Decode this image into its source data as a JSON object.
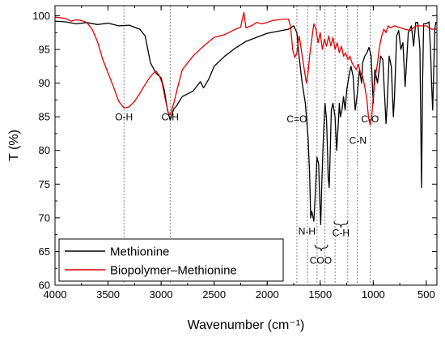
{
  "chart_data": {
    "type": "line",
    "title": "",
    "xlabel": "Wavenumber (cm⁻¹)",
    "ylabel": "T (%)",
    "xlim": [
      4000,
      400
    ],
    "ylim": [
      60,
      101.5
    ],
    "x_reversed": true,
    "x_ticks": [
      4000,
      3500,
      3000,
      2500,
      2000,
      1500,
      1000,
      500
    ],
    "y_ticks": [
      60,
      65,
      70,
      75,
      80,
      85,
      90,
      95,
      100
    ],
    "grid": false,
    "legend_position": "bottom-left",
    "series": [
      {
        "name": "Methionine",
        "color": "#000000",
        "points": [
          [
            4000,
            99.2
          ],
          [
            3900,
            99.1
          ],
          [
            3800,
            98.8
          ],
          [
            3700,
            99.0
          ],
          [
            3600,
            98.7
          ],
          [
            3500,
            98.9
          ],
          [
            3400,
            98.5
          ],
          [
            3300,
            98.6
          ],
          [
            3200,
            98.0
          ],
          [
            3150,
            97.0
          ],
          [
            3100,
            93.0
          ],
          [
            3050,
            91.5
          ],
          [
            3000,
            90.8
          ],
          [
            2970,
            89.0
          ],
          [
            2940,
            86.0
          ],
          [
            2915,
            84.5
          ],
          [
            2880,
            86.2
          ],
          [
            2860,
            86.5
          ],
          [
            2800,
            88.0
          ],
          [
            2700,
            88.8
          ],
          [
            2630,
            90.2
          ],
          [
            2600,
            89.3
          ],
          [
            2550,
            90.6
          ],
          [
            2500,
            92.5
          ],
          [
            2400,
            94.0
          ],
          [
            2300,
            95.2
          ],
          [
            2200,
            96.2
          ],
          [
            2100,
            96.8
          ],
          [
            2000,
            97.4
          ],
          [
            1900,
            97.7
          ],
          [
            1800,
            98.0
          ],
          [
            1750,
            98.5
          ],
          [
            1720,
            97.5
          ],
          [
            1700,
            94.0
          ],
          [
            1670,
            90.0
          ],
          [
            1640,
            87.0
          ],
          [
            1615,
            82.0
          ],
          [
            1600,
            76.5
          ],
          [
            1590,
            70.0
          ],
          [
            1580,
            71.0
          ],
          [
            1560,
            69.5
          ],
          [
            1545,
            74.0
          ],
          [
            1530,
            79.0
          ],
          [
            1515,
            78.0
          ],
          [
            1505,
            73.0
          ],
          [
            1495,
            69.0
          ],
          [
            1485,
            75.0
          ],
          [
            1470,
            82.0
          ],
          [
            1455,
            87.0
          ],
          [
            1440,
            84.5
          ],
          [
            1430,
            79.0
          ],
          [
            1425,
            76.0
          ],
          [
            1415,
            74.5
          ],
          [
            1405,
            80.0
          ],
          [
            1395,
            86.0
          ],
          [
            1380,
            87.0
          ],
          [
            1360,
            85.0
          ],
          [
            1345,
            80.0
          ],
          [
            1330,
            84.0
          ],
          [
            1320,
            87.0
          ],
          [
            1310,
            85.0
          ],
          [
            1295,
            86.0
          ],
          [
            1280,
            88.0
          ],
          [
            1265,
            86.0
          ],
          [
            1250,
            89.0
          ],
          [
            1230,
            91.0
          ],
          [
            1210,
            92.5
          ],
          [
            1190,
            91.0
          ],
          [
            1170,
            86.0
          ],
          [
            1150,
            88.5
          ],
          [
            1130,
            92.0
          ],
          [
            1110,
            90.0
          ],
          [
            1100,
            93.0
          ],
          [
            1080,
            94.0
          ],
          [
            1060,
            94.5
          ],
          [
            1040,
            95.3
          ],
          [
            1020,
            94.0
          ],
          [
            1000,
            87.0
          ],
          [
            985,
            92.0
          ],
          [
            960,
            90.0
          ],
          [
            930,
            94.0
          ],
          [
            910,
            93.5
          ],
          [
            880,
            84.0
          ],
          [
            870,
            86.5
          ],
          [
            850,
            94.0
          ],
          [
            830,
            92.5
          ],
          [
            810,
            85.0
          ],
          [
            800,
            88.0
          ],
          [
            780,
            97.0
          ],
          [
            760,
            97.8
          ],
          [
            740,
            95.0
          ],
          [
            720,
            96.0
          ],
          [
            700,
            89.5
          ],
          [
            690,
            92.0
          ],
          [
            670,
            97.5
          ],
          [
            640,
            98.5
          ],
          [
            620,
            95.5
          ],
          [
            600,
            99.0
          ],
          [
            580,
            99.0
          ],
          [
            560,
            95.0
          ],
          [
            545,
            74.5
          ],
          [
            535,
            90.0
          ],
          [
            525,
            98.8
          ],
          [
            500,
            98.8
          ],
          [
            475,
            99.1
          ],
          [
            460,
            95.0
          ],
          [
            450,
            90.0
          ],
          [
            440,
            86.0
          ],
          [
            420,
            98.0
          ],
          [
            410,
            99.0
          ],
          [
            400,
            99.0
          ]
        ]
      },
      {
        "name": "Biopolymer–Methionine",
        "color": "#e00000",
        "points": [
          [
            4000,
            99.8
          ],
          [
            3900,
            99.6
          ],
          [
            3850,
            99.2
          ],
          [
            3800,
            99.4
          ],
          [
            3750,
            99.3
          ],
          [
            3700,
            99.0
          ],
          [
            3650,
            98.0
          ],
          [
            3600,
            96.2
          ],
          [
            3550,
            93.5
          ],
          [
            3500,
            91.5
          ],
          [
            3450,
            89.5
          ],
          [
            3400,
            87.3
          ],
          [
            3350,
            86.3
          ],
          [
            3300,
            86.5
          ],
          [
            3250,
            87.3
          ],
          [
            3200,
            88.5
          ],
          [
            3150,
            89.8
          ],
          [
            3100,
            91.0
          ],
          [
            3050,
            91.8
          ],
          [
            3020,
            91.2
          ],
          [
            2990,
            90.0
          ],
          [
            2960,
            87.5
          ],
          [
            2930,
            85.5
          ],
          [
            2915,
            85.3
          ],
          [
            2880,
            87.0
          ],
          [
            2850,
            89.0
          ],
          [
            2800,
            92.0
          ],
          [
            2700,
            94.0
          ],
          [
            2600,
            95.5
          ],
          [
            2500,
            96.8
          ],
          [
            2400,
            97.2
          ],
          [
            2300,
            98.0
          ],
          [
            2250,
            98.3
          ],
          [
            2220,
            100.5
          ],
          [
            2200,
            98.2
          ],
          [
            2150,
            98.5
          ],
          [
            2100,
            99.0
          ],
          [
            2050,
            98.8
          ],
          [
            2000,
            99.0
          ],
          [
            1950,
            99.3
          ],
          [
            1900,
            99.4
          ],
          [
            1850,
            99.5
          ],
          [
            1800,
            99.5
          ],
          [
            1780,
            98.5
          ],
          [
            1760,
            95.0
          ],
          [
            1740,
            93.8
          ],
          [
            1720,
            94.5
          ],
          [
            1700,
            97.0
          ],
          [
            1690,
            96.2
          ],
          [
            1670,
            94.0
          ],
          [
            1650,
            92.0
          ],
          [
            1630,
            90.0
          ],
          [
            1615,
            91.5
          ],
          [
            1600,
            94.0
          ],
          [
            1580,
            96.5
          ],
          [
            1560,
            98.8
          ],
          [
            1540,
            98.0
          ],
          [
            1520,
            96.0
          ],
          [
            1500,
            97.5
          ],
          [
            1480,
            95.0
          ],
          [
            1460,
            96.5
          ],
          [
            1440,
            95.5
          ],
          [
            1420,
            97.0
          ],
          [
            1400,
            95.5
          ],
          [
            1380,
            96.8
          ],
          [
            1360,
            95.0
          ],
          [
            1340,
            96.0
          ],
          [
            1320,
            94.5
          ],
          [
            1300,
            95.5
          ],
          [
            1280,
            94.0
          ],
          [
            1260,
            94.5
          ],
          [
            1240,
            93.5
          ],
          [
            1220,
            94.0
          ],
          [
            1200,
            93.0
          ],
          [
            1180,
            92.5
          ],
          [
            1160,
            92.0
          ],
          [
            1140,
            92.8
          ],
          [
            1120,
            91.5
          ],
          [
            1100,
            91.0
          ],
          [
            1080,
            89.5
          ],
          [
            1060,
            87.5
          ],
          [
            1045,
            85.0
          ],
          [
            1030,
            83.8
          ],
          [
            1015,
            85.0
          ],
          [
            1000,
            88.0
          ],
          [
            980,
            91.0
          ],
          [
            960,
            93.0
          ],
          [
            940,
            95.5
          ],
          [
            920,
            97.0
          ],
          [
            900,
            98.0
          ],
          [
            880,
            97.5
          ],
          [
            860,
            98.5
          ],
          [
            840,
            98.2
          ],
          [
            800,
            98.5
          ],
          [
            760,
            98.3
          ],
          [
            700,
            98.0
          ],
          [
            650,
            97.8
          ],
          [
            600,
            98.5
          ],
          [
            550,
            98.5
          ],
          [
            500,
            98.5
          ],
          [
            450,
            98.0
          ],
          [
            400,
            98.0
          ]
        ]
      }
    ],
    "annotations": [
      {
        "text": "O-H",
        "x": 3350,
        "y": 84.5,
        "ref_top": 100,
        "ref_bottom": 86.5
      },
      {
        "text": "C-H",
        "x": 2915,
        "y": 84.5,
        "ref_top": 100,
        "ref_bottom": 85.5
      },
      {
        "text": "C=O",
        "x": 1720,
        "y": 84.2,
        "ref_top": 100,
        "ref_bottom": 86.0
      },
      {
        "text": "N-H",
        "x": 1625,
        "y": 67.5,
        "ref_top": 100,
        "ref_bottom": 69.0
      },
      {
        "text": "COO",
        "x": 1495,
        "y": 63.2,
        "ref_top": 100,
        "ref_bottom": 68.0
      },
      {
        "text": "C-H",
        "x": 1305,
        "y": 67.3,
        "ref_top": 100,
        "ref_bottom": 69.0
      },
      {
        "text": "C-N",
        "x": 1145,
        "y": 81.0,
        "ref_top": 100,
        "ref_bottom": 82.5
      },
      {
        "text": "C-O",
        "x": 1030,
        "y": 84.2,
        "ref_top": 100,
        "ref_bottom": 85.5
      }
    ],
    "dashed_refs": [
      3350,
      2915,
      1720,
      1620,
      1530,
      1455,
      1360,
      1240,
      1150,
      1030
    ],
    "braces": [
      {
        "x1": 1550,
        "x2": 1430,
        "y": 66.0,
        "dir": "down"
      },
      {
        "x1": 1370,
        "x2": 1240,
        "y": 69.5,
        "dir": "down"
      }
    ]
  }
}
